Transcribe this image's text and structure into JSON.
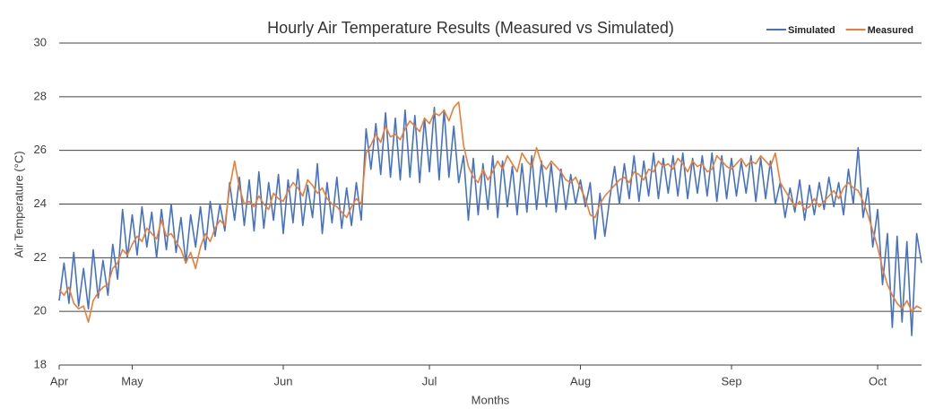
{
  "chart_data": {
    "type": "line",
    "title": "Hourly Air Temperature Results (Measured vs Simulated)",
    "x_label": "Months",
    "y_label": "Air Temperature (°C)",
    "legend": "top-right",
    "grid": true,
    "xlim": [
      15,
      192
    ],
    "xticks": [
      {
        "value": 15,
        "label": "Apr"
      },
      {
        "value": 30,
        "label": "May"
      },
      {
        "value": 61,
        "label": "Jun"
      },
      {
        "value": 91,
        "label": "Jul"
      },
      {
        "value": 122,
        "label": "Aug"
      },
      {
        "value": 153,
        "label": "Sep"
      },
      {
        "value": 183,
        "label": "Oct"
      }
    ],
    "ylim": [
      18,
      30
    ],
    "yticks": [
      18,
      20,
      22,
      24,
      26,
      28,
      30
    ],
    "x": [
      15,
      16,
      17,
      18,
      19,
      20,
      21,
      22,
      23,
      24,
      25,
      26,
      27,
      28,
      29,
      30,
      31,
      32,
      33,
      34,
      35,
      36,
      37,
      38,
      39,
      40,
      41,
      42,
      43,
      44,
      45,
      46,
      47,
      48,
      49,
      50,
      51,
      52,
      53,
      54,
      55,
      56,
      57,
      58,
      59,
      60,
      61,
      62,
      63,
      64,
      65,
      66,
      67,
      68,
      69,
      70,
      71,
      72,
      73,
      74,
      75,
      76,
      77,
      78,
      79,
      80,
      81,
      82,
      83,
      84,
      85,
      86,
      87,
      88,
      89,
      90,
      91,
      92,
      93,
      94,
      95,
      96,
      97,
      98,
      99,
      100,
      101,
      102,
      103,
      104,
      105,
      106,
      107,
      108,
      109,
      110,
      111,
      112,
      113,
      114,
      115,
      116,
      117,
      118,
      119,
      120,
      121,
      122,
      123,
      124,
      125,
      126,
      127,
      128,
      129,
      130,
      131,
      132,
      133,
      134,
      135,
      136,
      137,
      138,
      139,
      140,
      141,
      142,
      143,
      144,
      145,
      146,
      147,
      148,
      149,
      150,
      151,
      152,
      153,
      154,
      155,
      156,
      157,
      158,
      159,
      160,
      161,
      162,
      163,
      164,
      165,
      166,
      167,
      168,
      169,
      170,
      171,
      172,
      173,
      174,
      175,
      176,
      177,
      178,
      179,
      180,
      181,
      182,
      183,
      184,
      185,
      186,
      187,
      188,
      189,
      190,
      191,
      192
    ],
    "series": [
      {
        "name": "Simulated",
        "color": "#4472c4",
        "values": [
          20.4,
          21.8,
          20.3,
          22.2,
          20.2,
          21.6,
          20.1,
          22.3,
          20.5,
          21.9,
          20.6,
          22.5,
          21.2,
          23.8,
          22.0,
          23.6,
          22.1,
          23.9,
          22.4,
          23.7,
          22.0,
          23.8,
          22.3,
          24.0,
          22.2,
          23.5,
          21.8,
          23.6,
          22.4,
          23.9,
          22.3,
          24.1,
          22.8,
          24.0,
          23.0,
          24.8,
          23.4,
          25.0,
          23.2,
          24.9,
          23.0,
          25.2,
          23.1,
          24.8,
          23.4,
          25.1,
          22.9,
          24.9,
          23.3,
          25.3,
          23.2,
          24.7,
          23.5,
          25.5,
          22.9,
          24.8,
          23.3,
          25.0,
          23.1,
          24.6,
          23.2,
          24.8,
          23.4,
          26.8,
          25.3,
          27.0,
          25.1,
          27.4,
          25.0,
          27.2,
          24.9,
          27.5,
          25.0,
          27.3,
          24.8,
          27.2,
          25.2,
          27.6,
          24.9,
          27.5,
          25.0,
          26.9,
          24.8,
          25.8,
          23.4,
          25.7,
          23.6,
          25.5,
          23.8,
          25.8,
          23.5,
          25.6,
          23.9,
          25.4,
          23.6,
          25.5,
          23.7,
          25.8,
          23.8,
          25.6,
          23.9,
          25.5,
          23.7,
          25.3,
          23.8,
          25.1,
          24.0,
          24.9,
          23.9,
          24.8,
          22.7,
          24.4,
          22.8,
          24.2,
          25.4,
          24.0,
          25.5,
          24.2,
          25.8,
          24.1,
          25.6,
          24.3,
          25.9,
          24.2,
          25.7,
          24.4,
          25.8,
          24.3,
          25.9,
          24.2,
          25.7,
          24.4,
          25.8,
          24.3,
          25.9,
          24.1,
          25.8,
          24.2,
          25.7,
          24.3,
          25.6,
          24.4,
          25.8,
          24.1,
          25.7,
          24.2,
          25.6,
          24.0,
          24.8,
          23.5,
          24.6,
          23.7,
          24.9,
          23.4,
          24.7,
          23.6,
          24.8,
          23.8,
          25.0,
          23.9,
          24.8,
          23.6,
          25.3,
          24.0,
          26.1,
          23.5,
          24.6,
          22.4,
          23.8,
          21.0,
          22.9,
          19.4,
          22.8,
          19.6,
          22.6,
          19.1,
          22.9,
          21.8
        ]
      },
      {
        "name": "Measured",
        "color": "#ed7d31",
        "values": [
          20.8,
          20.6,
          20.9,
          20.3,
          20.1,
          20.2,
          19.6,
          20.4,
          20.7,
          20.9,
          21.0,
          21.6,
          21.8,
          22.3,
          22.1,
          22.5,
          22.8,
          22.6,
          23.1,
          22.9,
          22.7,
          23.4,
          22.8,
          22.9,
          22.6,
          22.3,
          21.8,
          22.2,
          21.6,
          22.4,
          22.9,
          22.6,
          23.1,
          23.4,
          23.2,
          24.6,
          25.6,
          24.6,
          24.0,
          24.1,
          23.9,
          24.3,
          24.0,
          23.8,
          24.4,
          24.2,
          24.1,
          24.5,
          24.8,
          24.6,
          24.3,
          24.9,
          24.7,
          24.4,
          24.6,
          24.2,
          24.0,
          23.9,
          23.7,
          23.5,
          23.9,
          24.2,
          24.0,
          25.9,
          26.2,
          26.6,
          26.3,
          26.9,
          26.5,
          26.6,
          26.4,
          26.8,
          27.1,
          26.9,
          26.7,
          27.2,
          27.0,
          27.4,
          27.3,
          27.5,
          27.1,
          27.6,
          27.8,
          26.2,
          25.4,
          25.0,
          24.8,
          25.3,
          24.9,
          25.2,
          25.6,
          25.3,
          25.8,
          25.5,
          25.2,
          25.9,
          25.6,
          25.4,
          26.1,
          25.5,
          25.3,
          25.6,
          25.4,
          25.2,
          24.9,
          24.8,
          25.0,
          24.6,
          24.2,
          23.6,
          23.5,
          24.0,
          24.3,
          24.5,
          24.7,
          24.9,
          25.0,
          24.8,
          25.2,
          25.1,
          24.9,
          25.3,
          25.2,
          25.6,
          25.4,
          25.5,
          25.3,
          25.7,
          25.5,
          25.2,
          25.6,
          25.4,
          25.5,
          25.2,
          25.3,
          25.8,
          25.6,
          25.4,
          25.3,
          25.5,
          25.7,
          25.4,
          25.6,
          25.5,
          25.8,
          25.6,
          25.4,
          25.9,
          24.8,
          24.5,
          24.2,
          23.9,
          24.1,
          23.8,
          23.9,
          24.2,
          23.9,
          24.1,
          24.3,
          24.5,
          24.2,
          24.6,
          24.8,
          24.6,
          24.5,
          24.1,
          23.6,
          23.0,
          22.4,
          21.6,
          21.0,
          20.6,
          20.3,
          20.1,
          20.4,
          20.0,
          20.2,
          20.1
        ]
      }
    ]
  }
}
